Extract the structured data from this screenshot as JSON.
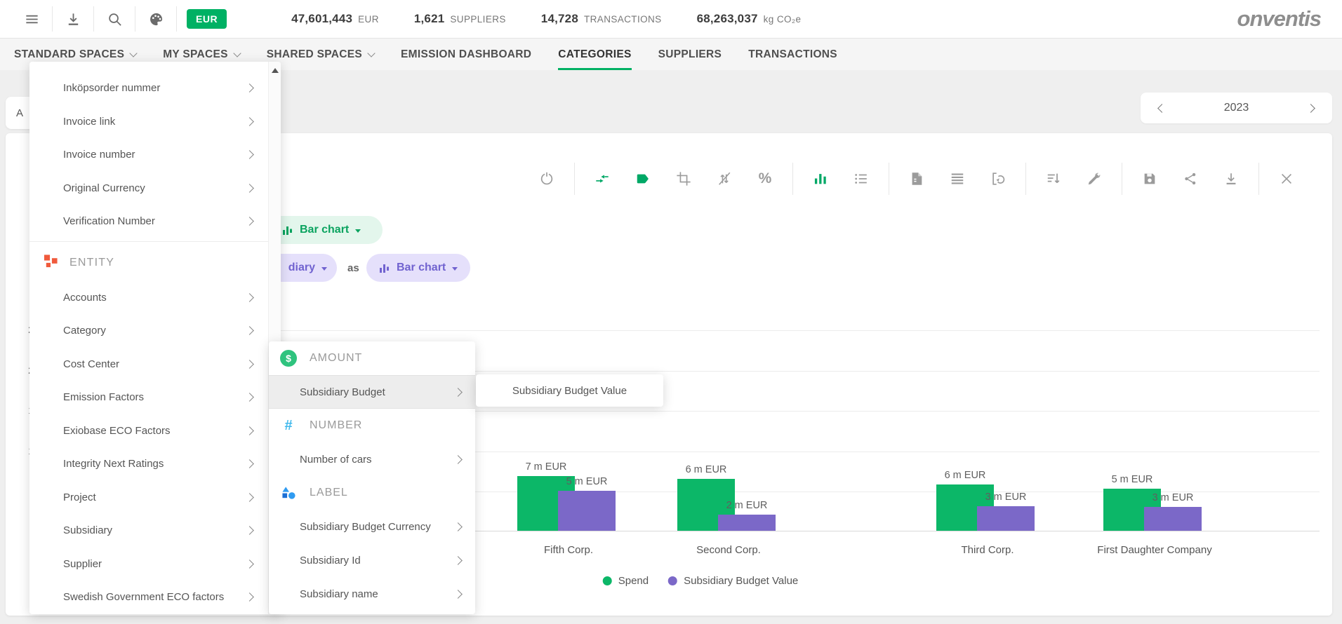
{
  "topbar": {
    "icon_buttons": [
      "menu-icon",
      "download-icon",
      "search-icon",
      "palette-icon"
    ],
    "currency_badge": "EUR",
    "stats": [
      {
        "value": "47,601,443",
        "label": "EUR"
      },
      {
        "value": "1,621",
        "label": "SUPPLIERS"
      },
      {
        "value": "14,728",
        "label": "TRANSACTIONS"
      },
      {
        "value": "68,263,037",
        "label": "kg CO₂e"
      }
    ],
    "logo": "onventis"
  },
  "nav": {
    "items": [
      {
        "label": "STANDARD SPACES",
        "dropdown": true,
        "active": false
      },
      {
        "label": "MY SPACES",
        "dropdown": true,
        "active": false
      },
      {
        "label": "SHARED SPACES",
        "dropdown": true,
        "active": false
      },
      {
        "label": "EMISSION DASHBOARD",
        "dropdown": false,
        "active": false
      },
      {
        "label": "CATEGORIES",
        "dropdown": false,
        "active": true
      },
      {
        "label": "SUPPLIERS",
        "dropdown": false,
        "active": false
      },
      {
        "label": "TRANSACTIONS",
        "dropdown": false,
        "active": false
      }
    ]
  },
  "subheader": {
    "chip_label": "A",
    "year_selector": {
      "value": "2023"
    }
  },
  "toolbar": {
    "groups": [
      [
        {
          "name": "refresh-icon"
        }
      ],
      [
        {
          "name": "merge-arrows-icon",
          "accent": true
        },
        {
          "name": "tag-icon",
          "accent": true
        },
        {
          "name": "crop-icon"
        },
        {
          "name": "no-sort-icon"
        },
        {
          "name": "percent-icon"
        }
      ],
      [
        {
          "name": "bar-chart-icon",
          "accent": true
        },
        {
          "name": "list-icon"
        }
      ],
      [
        {
          "name": "file-icon"
        },
        {
          "name": "rows-icon"
        },
        {
          "name": "pivot-icon"
        }
      ],
      [
        {
          "name": "sort-desc-icon"
        },
        {
          "name": "tools-icon"
        }
      ],
      [
        {
          "name": "save-icon"
        },
        {
          "name": "share-icon"
        },
        {
          "name": "download-icon"
        }
      ],
      [
        {
          "name": "close-icon"
        }
      ]
    ]
  },
  "pills": {
    "chart_type_pill": {
      "label": "Bar chart"
    },
    "dimension_pill": {
      "visible_label": "diary"
    },
    "as_label": "as",
    "render_as_pill": {
      "label": "Bar chart"
    }
  },
  "menus": {
    "fields_menu": {
      "items_top": [
        "Inköpsorder nummer",
        "Invoice link",
        "Invoice number",
        "Original Currency",
        "Verification Number"
      ],
      "section_label": "ENTITY",
      "items_entity": [
        "Accounts",
        "Category",
        "Cost Center",
        "Emission Factors",
        "Exiobase ECO Factors",
        "Integrity Next Ratings",
        "Project",
        "Subsidiary",
        "Supplier",
        "Swedish Government ECO factors"
      ]
    },
    "measures_menu": {
      "sections": [
        {
          "header": "AMOUNT",
          "icon": "amount",
          "items": [
            {
              "label": "Subsidiary Budget",
              "highlighted": true
            }
          ]
        },
        {
          "header": "NUMBER",
          "icon": "number",
          "items": [
            {
              "label": "Number of cars",
              "highlighted": false
            }
          ]
        },
        {
          "header": "LABEL",
          "icon": "label",
          "items": [
            {
              "label": "Subsidiary Budget Currency",
              "highlighted": false
            },
            {
              "label": "Subsidiary Id",
              "highlighted": false
            },
            {
              "label": "Subsidiary name",
              "highlighted": false
            }
          ]
        }
      ]
    },
    "flyout": {
      "label": "Subsidiary Budget Value"
    }
  },
  "chart_data": {
    "type": "bar",
    "categories": [
      "Fifth Corp.",
      "Second Corp.",
      "Third Corp.",
      "First Daughter Company"
    ],
    "series": [
      {
        "name": "Spend",
        "color": "#0cb768",
        "values_m_eur": [
          6.9,
          6.5,
          5.8,
          5.3
        ],
        "labels": [
          "7 m EUR",
          "6 m EUR",
          "6 m EUR",
          "5 m EUR"
        ]
      },
      {
        "name": "Subsidiary Budget Value",
        "color": "#7b68c8",
        "values_m_eur": [
          5.0,
          2.0,
          3.1,
          3.0
        ],
        "labels": [
          "5 m EUR",
          "2 m EUR",
          "3 m EUR",
          "3 m EUR"
        ]
      }
    ],
    "unit": "m EUR",
    "y_axis_visible_tick_digits": [
      "2",
      "2",
      "1",
      "1"
    ],
    "grid": true,
    "legend": [
      "Spend",
      "Subsidiary Budget Value"
    ],
    "legend_position": "bottom"
  },
  "colors": {
    "accent_green": "#00b164",
    "bar_green": "#0cb768",
    "bar_purple": "#7b68c8",
    "pill_green_bg": "#e3f6ec",
    "pill_green_text": "#0aa35f",
    "pill_purple_bg": "#e5e0fb",
    "pill_purple_text": "#7163d0",
    "entity_icon_orange": "#f05a3c",
    "number_icon_cyan": "#41b9ec",
    "label_icon_blue": "#2f9bf1"
  }
}
